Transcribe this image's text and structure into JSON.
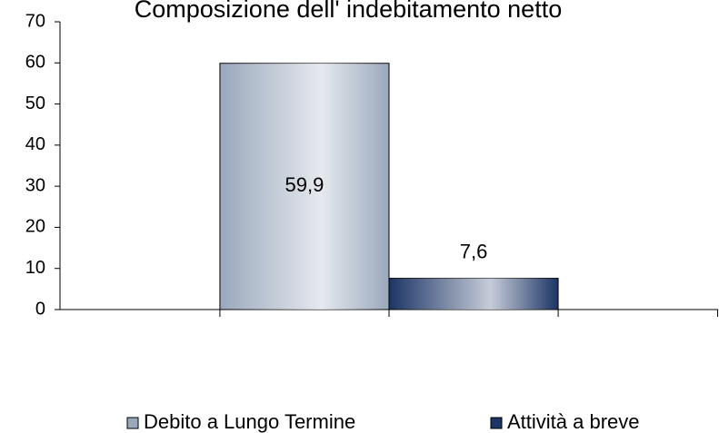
{
  "chart_data": {
    "type": "bar",
    "title": "Composizione dell' indebitamento netto",
    "categories": [
      null
    ],
    "series": [
      {
        "name": "Debito a Lungo Termine",
        "color": "#9aa8bc",
        "values": [
          59.9
        ],
        "value_labels": [
          "59,9"
        ]
      },
      {
        "name": "Attività a breve",
        "color": "#1c3566",
        "values": [
          7.6
        ],
        "value_labels": [
          "7,6"
        ]
      }
    ],
    "ylim": [
      0,
      70
    ],
    "yticks": [
      0,
      10,
      20,
      30,
      40,
      50,
      60,
      70
    ]
  }
}
